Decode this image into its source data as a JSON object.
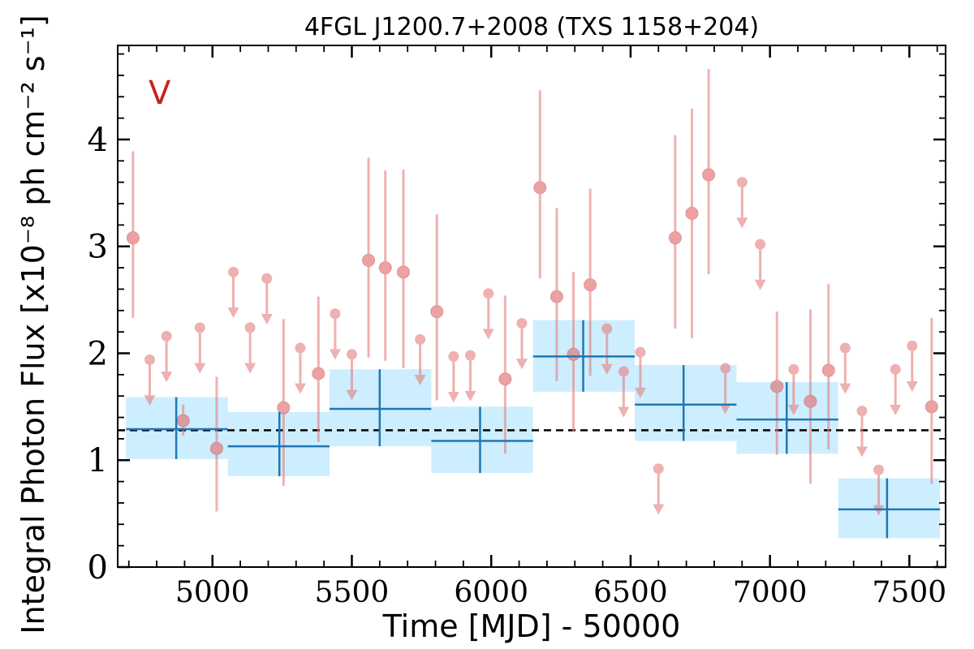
{
  "chart_data": {
    "type": "scatter",
    "title": "4FGL J1200.7+2008 (TXS 1158+204)",
    "xlabel": "Time [MJD] - 50000",
    "ylabel": "Integral Photon Flux [x10⁻⁸ ph cm⁻² s⁻¹]",
    "annotation": "V",
    "xlim": [
      4660,
      7630
    ],
    "ylim": [
      0,
      4.88
    ],
    "x_ticks": [
      5000,
      5500,
      6000,
      6500,
      7000,
      7500
    ],
    "x_tick_labels": [
      "5000",
      "5500",
      "6000",
      "6500",
      "7000",
      "7500"
    ],
    "y_ticks": [
      0,
      1,
      2,
      3,
      4
    ],
    "y_tick_labels": [
      "0",
      "1",
      "2",
      "3",
      "4"
    ],
    "mean_flux": 1.28,
    "colors": {
      "points": "#e58080",
      "binned": "#1f77b4",
      "band": "#cdeeff",
      "mean_line": "#000000",
      "annotation": "#c8221e"
    },
    "detections": [
      {
        "x": 4715,
        "y": 3.08,
        "lo": 2.33,
        "hi": 3.89
      },
      {
        "x": 4895,
        "y": 1.37,
        "lo": 1.23,
        "hi": 1.52
      },
      {
        "x": 5015,
        "y": 1.11,
        "lo": 0.52,
        "hi": 1.78
      },
      {
        "x": 5255,
        "y": 1.49,
        "lo": 0.76,
        "hi": 2.32
      },
      {
        "x": 5380,
        "y": 1.81,
        "lo": 1.17,
        "hi": 2.53
      },
      {
        "x": 5560,
        "y": 2.87,
        "lo": 1.96,
        "hi": 3.83
      },
      {
        "x": 5620,
        "y": 2.8,
        "lo": 1.93,
        "hi": 3.71
      },
      {
        "x": 5685,
        "y": 2.76,
        "lo": 1.86,
        "hi": 3.72
      },
      {
        "x": 5805,
        "y": 2.39,
        "lo": 1.56,
        "hi": 3.3
      },
      {
        "x": 6050,
        "y": 1.76,
        "lo": 1.06,
        "hi": 2.54
      },
      {
        "x": 6175,
        "y": 3.55,
        "lo": 2.7,
        "hi": 4.46
      },
      {
        "x": 6235,
        "y": 2.53,
        "lo": 1.74,
        "hi": 3.36
      },
      {
        "x": 6295,
        "y": 1.99,
        "lo": 1.27,
        "hi": 2.76
      },
      {
        "x": 6355,
        "y": 2.64,
        "lo": 1.79,
        "hi": 3.54
      },
      {
        "x": 6660,
        "y": 3.08,
        "lo": 2.23,
        "hi": 4.04
      },
      {
        "x": 6720,
        "y": 3.31,
        "lo": 2.14,
        "hi": 4.29
      },
      {
        "x": 6780,
        "y": 3.67,
        "lo": 2.74,
        "hi": 4.66
      },
      {
        "x": 7025,
        "y": 1.69,
        "lo": 1.05,
        "hi": 2.39
      },
      {
        "x": 7145,
        "y": 1.55,
        "lo": 0.78,
        "hi": 2.41
      },
      {
        "x": 7210,
        "y": 1.84,
        "lo": 1.1,
        "hi": 2.65
      },
      {
        "x": 7580,
        "y": 1.5,
        "lo": 0.78,
        "hi": 2.33
      }
    ],
    "upper_limits": [
      {
        "x": 4775,
        "y": 1.94
      },
      {
        "x": 4835,
        "y": 2.16
      },
      {
        "x": 4955,
        "y": 2.24
      },
      {
        "x": 5075,
        "y": 2.76
      },
      {
        "x": 5135,
        "y": 2.24
      },
      {
        "x": 5195,
        "y": 2.7
      },
      {
        "x": 5315,
        "y": 2.05
      },
      {
        "x": 5440,
        "y": 2.37
      },
      {
        "x": 5500,
        "y": 1.99
      },
      {
        "x": 5745,
        "y": 2.13
      },
      {
        "x": 5865,
        "y": 1.97
      },
      {
        "x": 5925,
        "y": 1.98
      },
      {
        "x": 5990,
        "y": 2.56
      },
      {
        "x": 6110,
        "y": 2.28
      },
      {
        "x": 6415,
        "y": 2.23
      },
      {
        "x": 6475,
        "y": 1.83
      },
      {
        "x": 6535,
        "y": 2.01
      },
      {
        "x": 6600,
        "y": 0.92
      },
      {
        "x": 6840,
        "y": 1.86
      },
      {
        "x": 6900,
        "y": 3.6
      },
      {
        "x": 6965,
        "y": 3.02
      },
      {
        "x": 7085,
        "y": 1.85
      },
      {
        "x": 7270,
        "y": 2.05
      },
      {
        "x": 7330,
        "y": 1.46
      },
      {
        "x": 7390,
        "y": 0.91
      },
      {
        "x": 7450,
        "y": 1.85
      },
      {
        "x": 7510,
        "y": 2.07
      }
    ],
    "binned": [
      {
        "x0": 4690,
        "x1": 5055,
        "x": 4870,
        "y": 1.29,
        "band_lo": 1.01,
        "band_hi": 1.59,
        "err_lo": 1.01,
        "err_hi": 1.59
      },
      {
        "x0": 5055,
        "x1": 5420,
        "x": 5240,
        "y": 1.13,
        "band_lo": 0.85,
        "band_hi": 1.45,
        "err_lo": 0.85,
        "err_hi": 1.45
      },
      {
        "x0": 5420,
        "x1": 5785,
        "x": 5600,
        "y": 1.48,
        "band_lo": 1.13,
        "band_hi": 1.85,
        "err_lo": 1.13,
        "err_hi": 1.85
      },
      {
        "x0": 5785,
        "x1": 6150,
        "x": 5960,
        "y": 1.18,
        "band_lo": 0.88,
        "band_hi": 1.5,
        "err_lo": 0.88,
        "err_hi": 1.5
      },
      {
        "x0": 6150,
        "x1": 6515,
        "x": 6330,
        "y": 1.97,
        "band_lo": 1.64,
        "band_hi": 2.31,
        "err_lo": 1.64,
        "err_hi": 2.31
      },
      {
        "x0": 6515,
        "x1": 6880,
        "x": 6690,
        "y": 1.52,
        "band_lo": 1.18,
        "band_hi": 1.89,
        "err_lo": 1.18,
        "err_hi": 1.89
      },
      {
        "x0": 6880,
        "x1": 7245,
        "x": 7060,
        "y": 1.38,
        "band_lo": 1.06,
        "band_hi": 1.73,
        "err_lo": 1.06,
        "err_hi": 1.73
      },
      {
        "x0": 7245,
        "x1": 7610,
        "x": 7420,
        "y": 0.54,
        "band_lo": 0.27,
        "band_hi": 0.83,
        "err_lo": 0.27,
        "err_hi": 0.83
      }
    ]
  }
}
